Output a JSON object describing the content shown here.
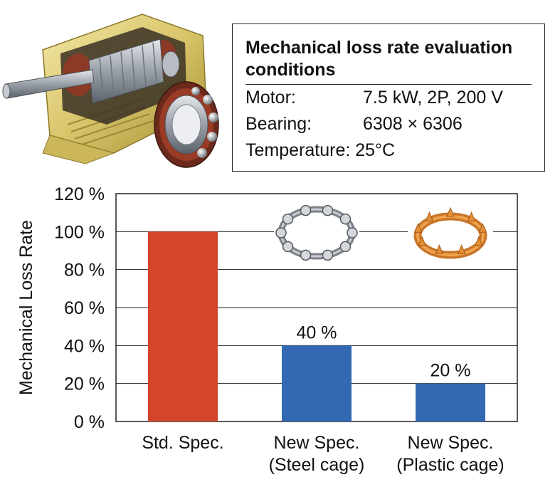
{
  "conditions": {
    "title": "Mechanical loss rate evaluation conditions",
    "rows": [
      {
        "key": "Motor:",
        "value": "7.5 kW, 2P, 200 V"
      },
      {
        "key": "Bearing:",
        "value": "6308 × 6306"
      },
      {
        "key": "Temperature:",
        "value": "25°C"
      }
    ]
  },
  "chart_data": {
    "type": "bar",
    "ylabel": "Mechanical Loss Rate",
    "xlabel": "",
    "ylim": [
      0,
      120
    ],
    "yticks": [
      0,
      20,
      40,
      60,
      80,
      100,
      120
    ],
    "ytick_labels": [
      "0 %",
      "20 %",
      "40 %",
      "60 %",
      "80 %",
      "100 %",
      "120 %"
    ],
    "grid": true,
    "categories": [
      [
        "Std. Spec."
      ],
      [
        "New Spec.",
        "(Steel cage)"
      ],
      [
        "New Spec.",
        "(Plastic cage)"
      ]
    ],
    "values": [
      100,
      40,
      20
    ],
    "data_labels": [
      "",
      "40 %",
      "20 %"
    ],
    "bar_colors": [
      "#d4452b",
      "#3369b2",
      "#3369b2"
    ],
    "images": [
      "steel-cage",
      "plastic-cage"
    ]
  },
  "icons": {
    "motor": "motor-cutaway-icon",
    "bearing": "ball-bearing-icon"
  }
}
